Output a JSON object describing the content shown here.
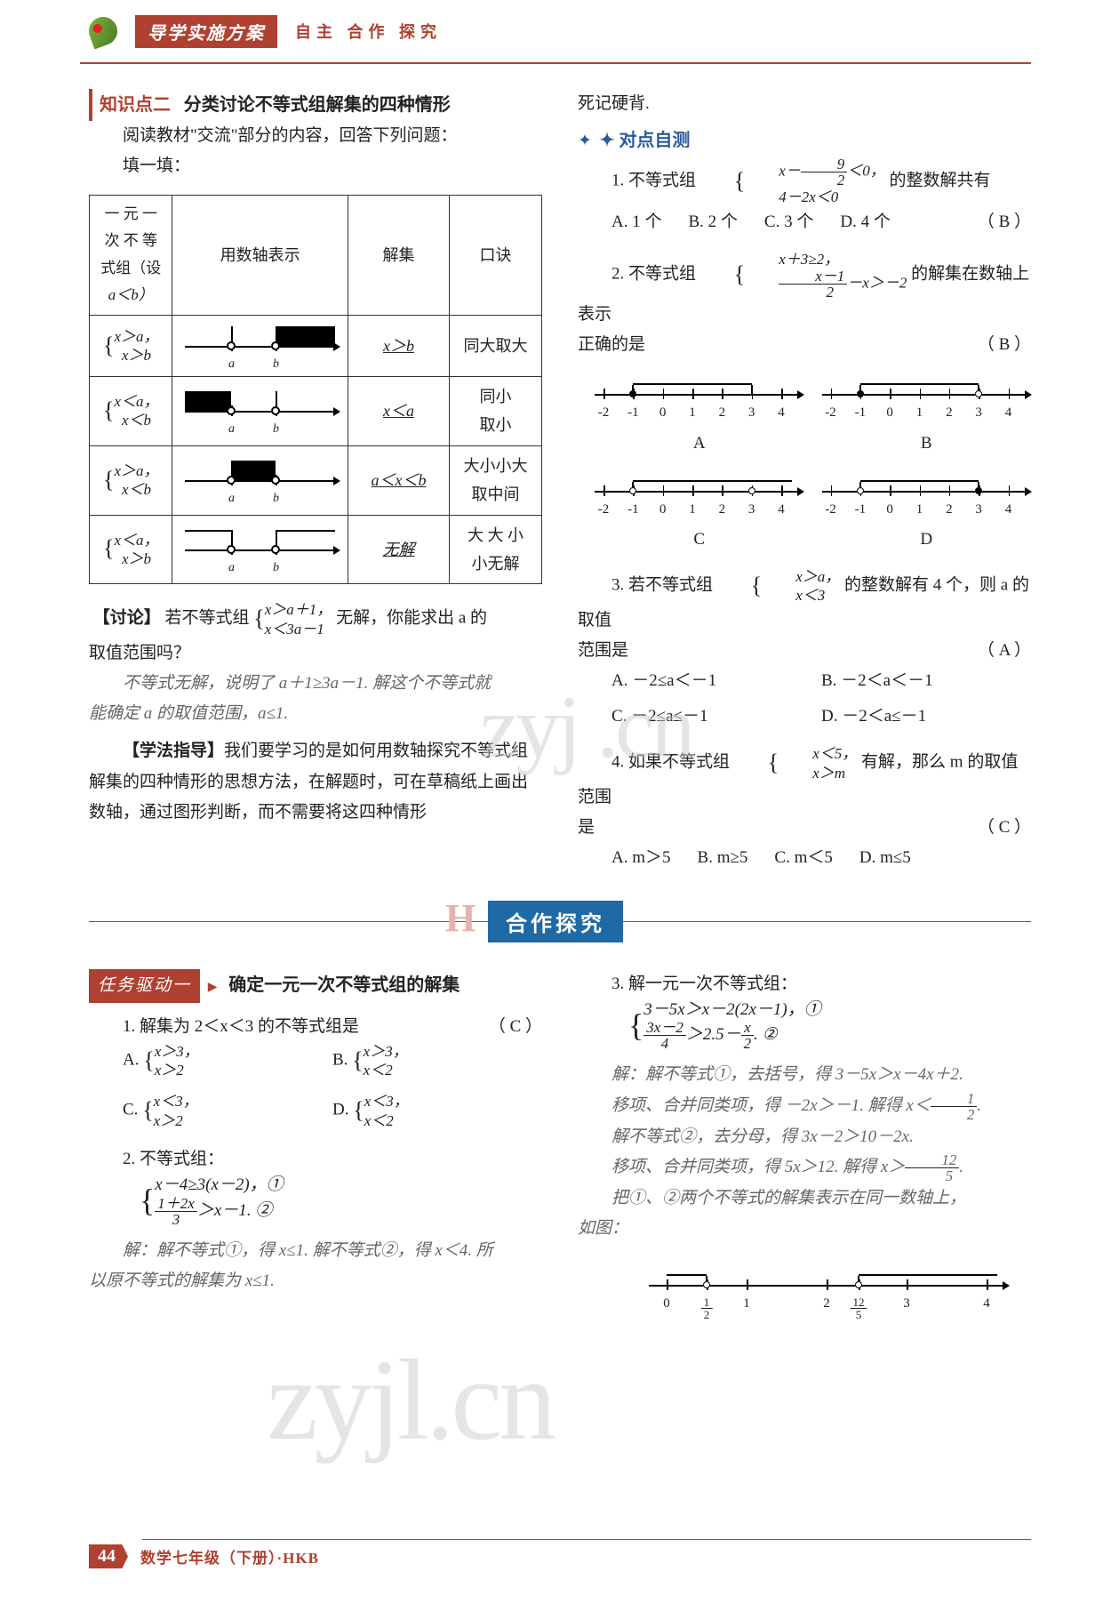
{
  "colors": {
    "brand": "#b04030",
    "accent_blue": "#1f6aa5",
    "check_blue": "#2a5aa0",
    "text": "#222222",
    "grey": "#666666",
    "watermark": "#cccccc",
    "background": "#ffffff"
  },
  "header": {
    "title": "导学实施方案",
    "subtitle": "自主  合作  探究"
  },
  "left": {
    "kp_label": "知识点二",
    "kp_title": "分类讨论不等式组解集的四种情形",
    "read_prompt": "阅读教材\"交流\"部分的内容，回答下列问题：",
    "fill_prompt": "填一填：",
    "table": {
      "head": {
        "c1a": "一 元 一",
        "c1b": "次 不 等",
        "c1c": "式组（设",
        "c1d": "a＜b）",
        "c2": "用数轴表示",
        "c3": "解集",
        "c4": "口诀"
      },
      "rows": [
        {
          "sys1": "x＞a，",
          "sys2": "x＞b",
          "axis": {
            "a": 60,
            "b": 110,
            "fill_from": 110,
            "fill_to": 174
          },
          "set": "x＞b",
          "kou": "同大取大"
        },
        {
          "sys1": "x＜a，",
          "sys2": "x＜b",
          "axis": {
            "a": 60,
            "b": 110,
            "fill_from": 8,
            "fill_to": 60
          },
          "set": "x＜a",
          "kou": "同小\n取小"
        },
        {
          "sys1": "x＞a，",
          "sys2": "x＜b",
          "axis": {
            "a": 60,
            "b": 110,
            "fill_from": 60,
            "fill_to": 110
          },
          "set": "a＜x＜b",
          "kou": "大小小大\n取中间"
        },
        {
          "sys1": "x＜a，",
          "sys2": "x＞b",
          "axis": {
            "a": 60,
            "b": 110,
            "fill_from": -1,
            "fill_to": -1
          },
          "set": "无解",
          "kou": "大 大 小\n小无解"
        }
      ]
    },
    "discuss_label": "【讨论】",
    "discuss_text_a": "若不等式组",
    "discuss_sys1": "x＞a＋1，",
    "discuss_sys2": "x＜3a－1",
    "discuss_text_b": "无解，你能求出 a 的",
    "discuss_text_c": "取值范围吗？",
    "discuss_ans1": "不等式无解，说明了 a＋1≥3a－1. 解这个不等式就",
    "discuss_ans2": "能确定 a 的取值范围，a≤1.",
    "method_label": "【学法指导】",
    "method_text": "我们要学习的是如何用数轴探究不等式组解集的四种情形的思想方法，在解题时，可在草稿纸上画出数轴，通过图形判断，而不需要将这四种情形"
  },
  "right": {
    "memo": "死记硬背.",
    "check_label": "✦ 对点自测",
    "q1": {
      "stem_a": "1. 不等式组",
      "sys1": "x－",
      "frac_num": "9",
      "frac_den": "2",
      "sys1b": "＜0，",
      "sys2": "4－2x＜0",
      "stem_b": "的整数解共有",
      "ans": "（ B ）",
      "opts": {
        "A": "A. 1 个",
        "B": "B. 2 个",
        "C": "C. 3 个",
        "D": "D. 4 个"
      }
    },
    "q2": {
      "stem_a": "2. 不等式组",
      "sys1": "x＋3≥2，",
      "sys2a_num": "x－1",
      "sys2a_den": "2",
      "sys2b": "－x＞－2",
      "stem_b": "的解集在数轴上表示",
      "stem_c": "正确的是",
      "ans": "（ B ）",
      "ticks": [
        "-2",
        "-1",
        "0",
        "1",
        "2",
        "3",
        "4"
      ],
      "letters": {
        "A": "A",
        "B": "B",
        "C": "C",
        "D": "D"
      },
      "axes": {
        "A": {
          "filled_at": -1,
          "open_at": null,
          "seg_from": -1,
          "seg_to": 3,
          "right_open": true,
          "extend_right": false
        },
        "B": {
          "filled_at": -1,
          "open_at": 3,
          "seg_from": -1,
          "seg_to": 3,
          "right_open": true,
          "extend_right": false
        },
        "C": {
          "filled_at": null,
          "open_at": -1,
          "seg_from": -1,
          "seg_to": 5,
          "right_open": false,
          "extend_right": true,
          "second_open": 3
        },
        "D": {
          "filled_at": null,
          "open_at": -1,
          "seg_from": -1,
          "seg_to": 3,
          "right_open": true,
          "second_filled": 3,
          "extend_right": false
        }
      }
    },
    "q3": {
      "stem_a": "3. 若不等式组",
      "sys1": "x＞a，",
      "sys2": "x＜3",
      "stem_b": "的整数解有 4 个，则 a 的取值",
      "stem_c": "范围是",
      "ans": "（ A ）",
      "opts": {
        "A": "A. －2≤a＜－1",
        "B": "B. －2＜a＜－1",
        "C": "C. －2≤a≤－1",
        "D": "D. －2＜a≤－1"
      }
    },
    "q4": {
      "stem_a": "4. 如果不等式组",
      "sys1": "x＜5，",
      "sys2": "x＞m",
      "stem_b": "有解，那么 m 的取值范围",
      "stem_c": "是",
      "ans": "（ C ）",
      "opts": {
        "A": "A. m＞5",
        "B": "B. m≥5",
        "C": "C. m＜5",
        "D": "D. m≤5"
      }
    }
  },
  "band": {
    "title": "合作探究",
    "initial": "H"
  },
  "lower_left": {
    "task_label": "任务驱动一",
    "task_title": "确定一元一次不等式组的解集",
    "q1": {
      "stem": "1. 解集为 2＜x＜3 的不等式组是",
      "ans": "（ C ）",
      "opts": {
        "A": {
          "l1": "x＞3，",
          "l2": "x＞2"
        },
        "B": {
          "l1": "x＞3，",
          "l2": "x＜2"
        },
        "C": {
          "l1": "x＜3，",
          "l2": "x＞2"
        },
        "D": {
          "l1": "x＜3，",
          "l2": "x＜2"
        }
      }
    },
    "q2": {
      "stem": "2. 不等式组：",
      "sys1": "x－4≥3(x－2)，①",
      "sys2a_num": "1＋2x",
      "sys2a_den": "3",
      "sys2b": "＞x－1. ②",
      "sol1": "解：解不等式①，得 x≤1. 解不等式②，得 x＜4. 所",
      "sol2": "以原不等式的解集为 x≤1."
    }
  },
  "lower_right": {
    "q3": {
      "stem": "3. 解一元一次不等式组：",
      "sys1": "3－5x＞x－2(2x－1)，①",
      "sys2a_num": "3x－2",
      "sys2a_den": "4",
      "sys2b": "＞2.5－",
      "sys2c_num": "x",
      "sys2c_den": "2",
      "sys2d": ". ②",
      "sol1": "解：解不等式①，去括号，得 3－5x＞x－4x＋2.",
      "sol2": "移项、合并同类项，得 －2x＞－1. 解得 x＜",
      "sol2_fr_num": "1",
      "sol2_fr_den": "2",
      "sol2_end": ".",
      "sol3": "解不等式②，去分母，得 3x－2＞10－2x.",
      "sol4": "移项、合并同类项，得 5x＞12. 解得 x＞",
      "sol4_fr_num": "12",
      "sol4_fr_den": "5",
      "sol4_end": ".",
      "sol5": "把①、②两个不等式的解集表示在同一数轴上，",
      "sol6": "如图：",
      "axis": {
        "ticks_top": [
          "0",
          "1",
          "2",
          "3",
          "4"
        ],
        "ticks_bottom_extra": [
          {
            "pos": 0.5,
            "label_num": "1",
            "label_den": "2"
          },
          {
            "pos": 2.4,
            "label_num": "12",
            "label_den": "5"
          }
        ]
      }
    }
  },
  "footer": {
    "page": "44",
    "text": "数学七年级（下册）·HKB"
  },
  "watermarks": {
    "w1": "zyj .cn",
    "w2": "zyjl.cn"
  }
}
